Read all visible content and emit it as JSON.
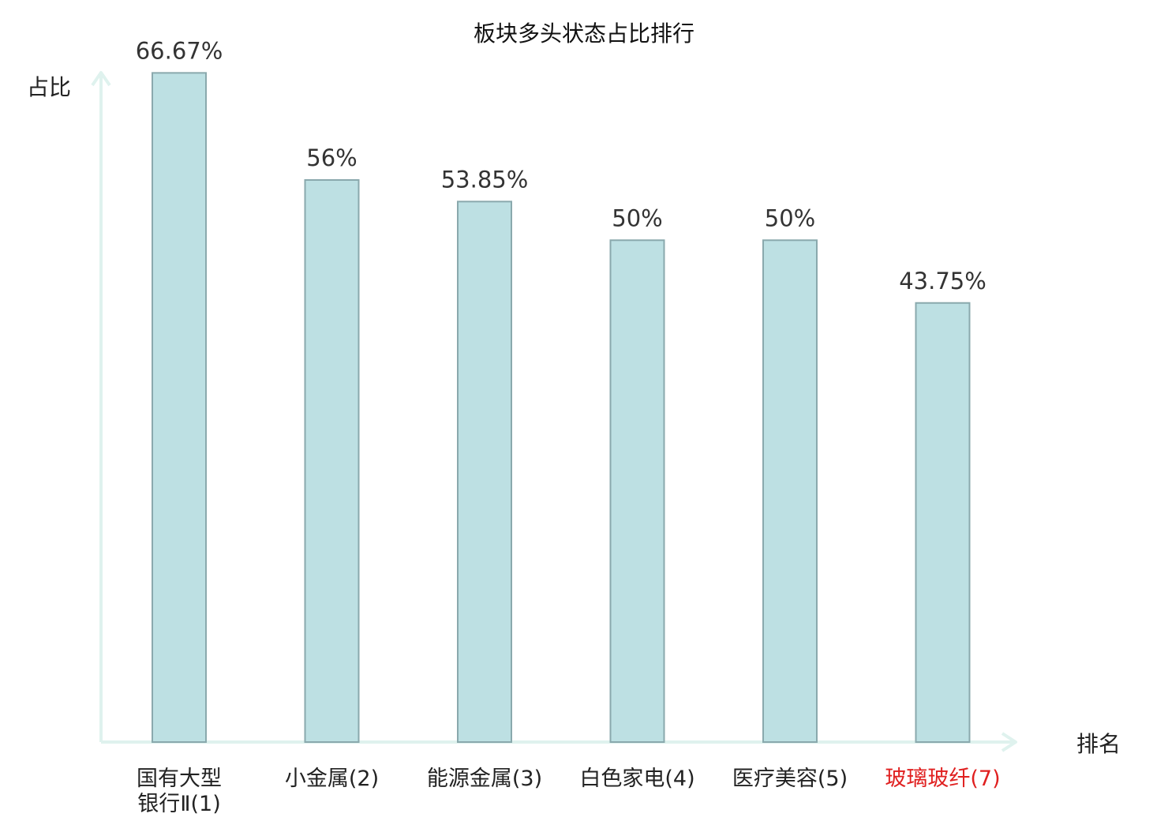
{
  "chart_data": {
    "type": "bar",
    "title": "板块多头状态占比排行",
    "ylabel": "占比",
    "xlabel": "排名",
    "ylim": [
      0,
      70
    ],
    "grid": false,
    "legend": "none",
    "categories": [
      [
        "国有大型",
        "银行Ⅱ(1)"
      ],
      [
        "小金属(2)"
      ],
      [
        "能源金属(3)"
      ],
      [
        "白色家电(4)"
      ],
      [
        "医疗美容(5)"
      ],
      [
        "玻璃玻纤(7)"
      ]
    ],
    "values": [
      66.67,
      56,
      53.85,
      50,
      50,
      43.75
    ],
    "value_labels": [
      "66.67%",
      "56%",
      "53.85%",
      "50%",
      "50%",
      "43.75%"
    ],
    "highlight_index": 5,
    "colors": {
      "bar_fill": "#bde0e3",
      "bar_stroke": "#8aa9ad",
      "axis": "#dff2ee",
      "text": "#333333",
      "title": "#111111",
      "highlight": "#e02020"
    }
  }
}
